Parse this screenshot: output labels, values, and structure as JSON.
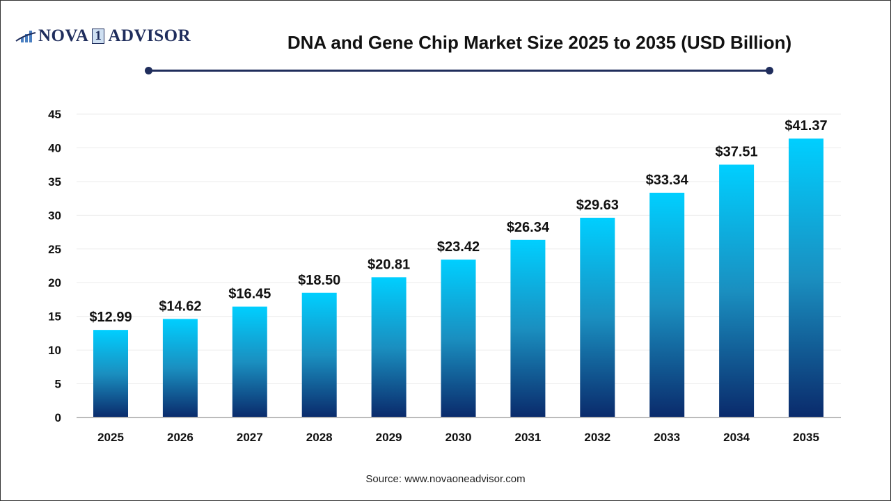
{
  "logo": {
    "brand": "NOVA",
    "one": "1",
    "rest": "ADVISOR"
  },
  "source": "Source: www.novaoneadvisor.com",
  "colors": {
    "bar_top": "#00cfff",
    "bar_bottom": "#0a2a6b",
    "accent": "#1f2d5c"
  },
  "chart_data": {
    "type": "bar",
    "title": "DNA and Gene Chip Market Size 2025 to 2035 (USD Billion)",
    "categories": [
      "2025",
      "2026",
      "2027",
      "2028",
      "2029",
      "2030",
      "2031",
      "2032",
      "2033",
      "2034",
      "2035"
    ],
    "values": [
      12.99,
      14.62,
      16.45,
      18.5,
      20.81,
      23.42,
      26.34,
      29.63,
      33.34,
      37.51,
      41.37
    ],
    "data_labels": [
      "$12.99",
      "$14.62",
      "$16.45",
      "$18.50",
      "$20.81",
      "$23.42",
      "$26.34",
      "$29.63",
      "$33.34",
      "$37.51",
      "$41.37"
    ],
    "yticks": [
      0,
      5,
      10,
      15,
      20,
      25,
      30,
      35,
      40,
      45
    ],
    "ylim": [
      0,
      45
    ],
    "xlabel": "",
    "ylabel": "",
    "grid": true,
    "legend": "none"
  }
}
